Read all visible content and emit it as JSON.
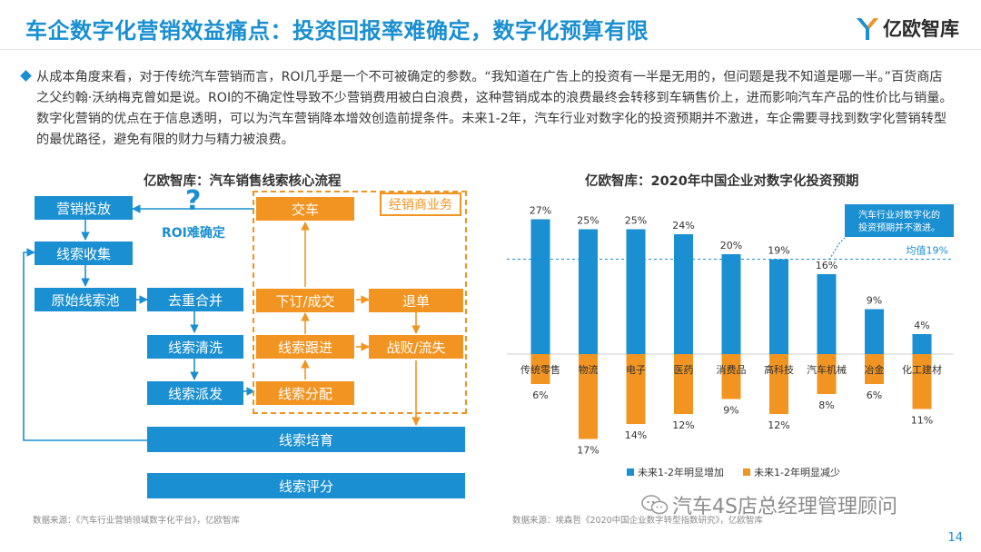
{
  "header": {
    "title": "车企数字化营销效益痛点：投资回报率难确定，数字化预算有限",
    "logo_text": "亿欧智库"
  },
  "intro": {
    "text": "从成本角度来看，对于传统汽车营销而言，ROI几乎是一个不可被确定的参数。“我知道在广告上的投资有一半是无用的，但问题是我不知道是哪一半。”百货商店之父约翰·沃纳梅克曾如是说。ROI的不确定性导致不少营销费用被白白浪费，这种营销成本的浪费最终会转移到车辆售价上，进而影响汽车产品的性价比与销量。数字化营销的优点在于信息透明，可以为汽车营销降本增效创造前提条件。未来1-2年，汽车行业对数字化的投资预期并不激进，车企需要寻找到数字化营销转型的最优路径，避免有限的财力与精力被浪费。"
  },
  "flow": {
    "title": "亿欧智库：汽车销售线索核心流程",
    "dealer_label": "经销商业务",
    "question_mark": "?",
    "roi_label": "ROI难确定",
    "nodes": {
      "marketing": "营销投放",
      "collect": "线索收集",
      "raw_pool": "原始线索池",
      "dedupe": "去重合并",
      "clean": "线索清洗",
      "dispatch": "线索派发",
      "deliver": "交车",
      "order": "下订/成交",
      "refund": "退单",
      "follow": "线索跟进",
      "defeat": "战败/流失",
      "assign": "线索分配",
      "nurture": "线索培育",
      "score": "线索评分"
    },
    "source": "数据来源：《汽车行业营销领域数字化平台》，亿欧智库"
  },
  "chart_data": {
    "type": "bar",
    "title": "亿欧智库：2020年中国企业对数字化投资预期",
    "categories": [
      "传统零售",
      "物流",
      "电子",
      "医药",
      "消费品",
      "高科技",
      "汽车机械",
      "冶金",
      "化工建材"
    ],
    "series": [
      {
        "name": "未来1-2年明显增加",
        "values": [
          27,
          25,
          25,
          24,
          20,
          19,
          16,
          9,
          4
        ],
        "color": "#1a8fd1"
      },
      {
        "name": "未来1-2年明显减少",
        "values": [
          6,
          17,
          14,
          12,
          9,
          12,
          8,
          6,
          11
        ],
        "color": "#f29421"
      }
    ],
    "average": {
      "value": 19,
      "label": "均值19%"
    },
    "annotation": "汽车行业对数字化的投资预期并不激进。",
    "value_suffix": "%",
    "legend_position": "bottom",
    "grid": false
  },
  "chart_source": "数据来源：埃森哲《2020中国企业数字转型指数研究》，亿欧智库",
  "watermark": "汽车4S店总经理管理顾问",
  "page_number": "14"
}
